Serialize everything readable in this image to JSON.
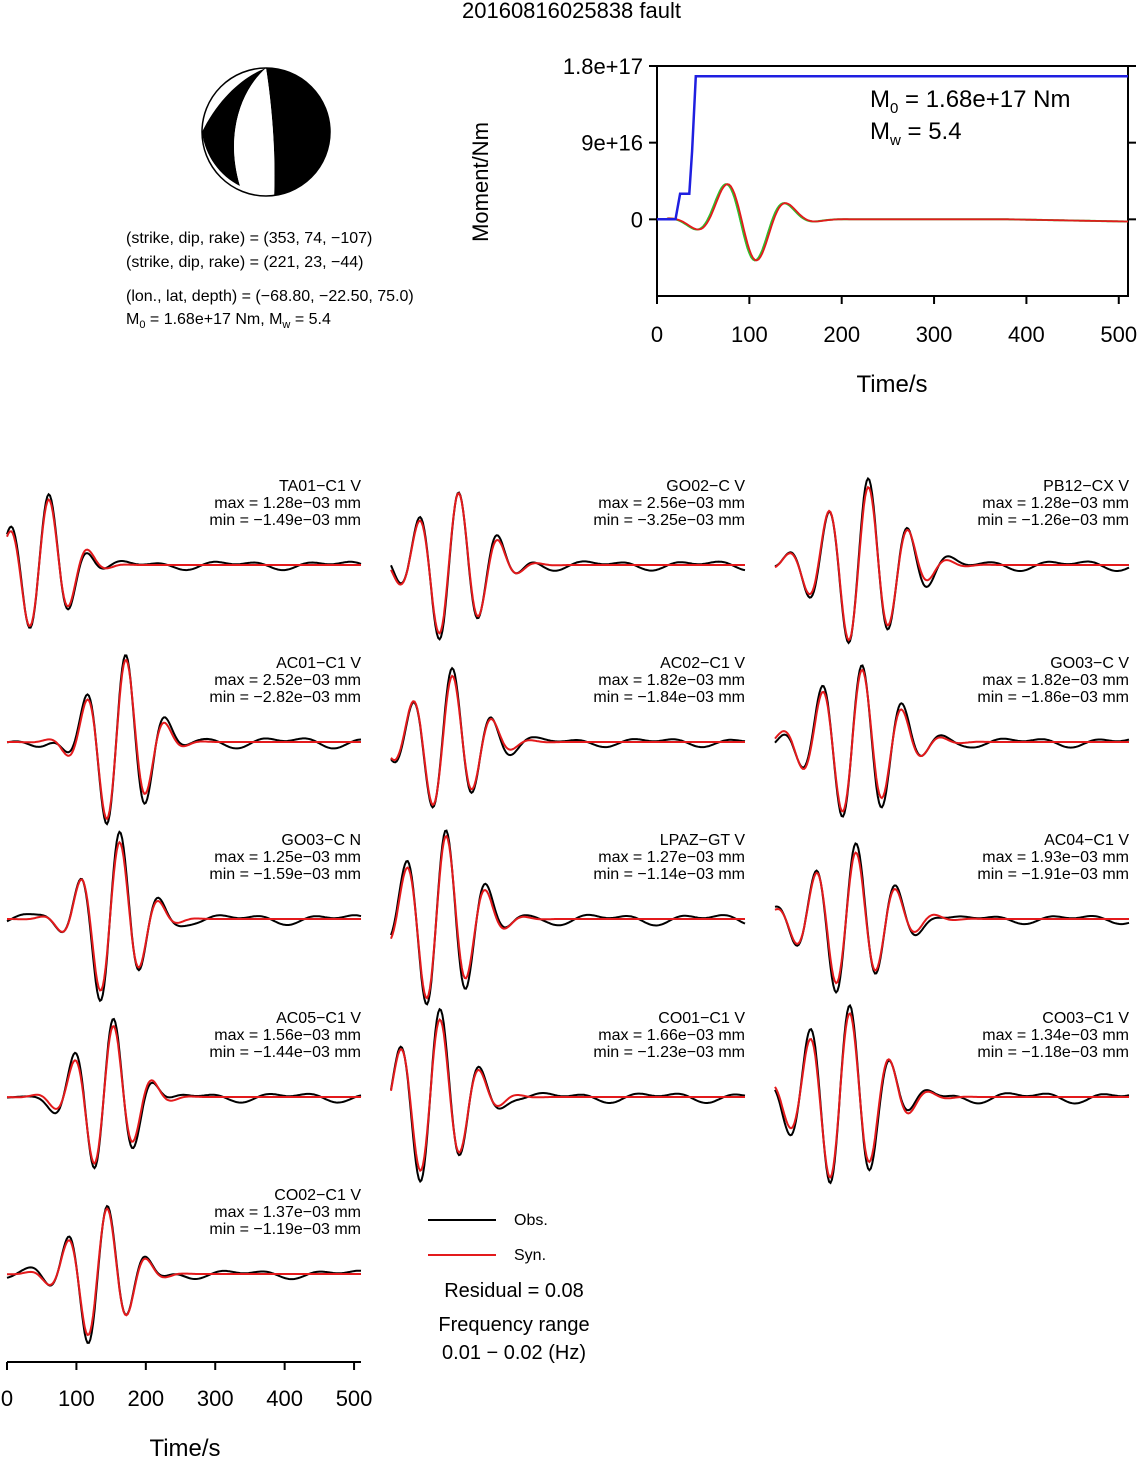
{
  "title": "20160816025838 fault",
  "info": {
    "plane1": "(strike, dip, rake) = (353, 74, −107)",
    "plane2": "(strike, dip, rake) = (221, 23, −44)",
    "location": "(lon., lat, depth) = (−68.80, −22.50, 75.0)",
    "m0_prefix": "M",
    "m0_sub": "0",
    "m0_value": " = 1.68e+17 Nm, M",
    "mw_sub": "w",
    "mw_value": " = 5.4"
  },
  "moment_annot": {
    "m_prefix": "M",
    "m0_sub": "0",
    "m0_value": " = 1.68e+17 Nm",
    "mw_sub": "w",
    "mw_value": " = 5.4"
  },
  "colors": {
    "obs": "#000000",
    "syn": "#e31a1c",
    "stf": "#1f1fe0",
    "stf2": "#2ec02e"
  },
  "chart_data": [
    {
      "type": "line",
      "ylabel": "Moment/Nm",
      "xlabel": "Time/s",
      "xlim": [
        0,
        510
      ],
      "ylim": [
        -9e+16,
        1.8e+17
      ],
      "xticks": [
        "0",
        "100",
        "200",
        "300",
        "400",
        "500"
      ],
      "xtick_values": [
        0,
        100,
        200,
        300,
        400,
        500
      ],
      "yticks": [
        "0",
        "9e+16",
        "1.8e+17"
      ],
      "ytick_values": [
        0,
        9e+16,
        1.8e+17
      ],
      "series": [
        {
          "x": [
            0,
            20,
            25,
            35,
            38,
            42,
            510
          ],
          "y": [
            0,
            0,
            3e+16,
            3e+16,
            8e+16,
            1.68e+17,
            1.68e+17
          ]
        }
      ]
    },
    {
      "type": "line",
      "xlabel": "Time/s",
      "xlim": [
        0,
        510
      ],
      "xticks": [
        "0",
        "100",
        "200",
        "300",
        "400",
        "500"
      ],
      "xtick_values": [
        0,
        100,
        200,
        300,
        400,
        500
      ],
      "legend": [
        "Obs.",
        "Syn."
      ],
      "residual": "Residual = 0.08",
      "freq_title": "Frequency range",
      "freq_range": "0.01 − 0.02 (Hz)",
      "stations": [
        {
          "name": "TA01−C1 V",
          "max": "max = 1.28e−03 mm",
          "min": "min = −1.49e−03 mm"
        },
        {
          "name": "GO02−C V",
          "max": "max = 2.56e−03 mm",
          "min": "min = −3.25e−03 mm"
        },
        {
          "name": "PB12−CX V",
          "max": "max = 1.28e−03 mm",
          "min": "min = −1.26e−03 mm"
        },
        {
          "name": "AC01−C1 V",
          "max": "max = 2.52e−03 mm",
          "min": "min = −2.82e−03 mm"
        },
        {
          "name": "AC02−C1 V",
          "max": "max = 1.82e−03 mm",
          "min": "min = −1.84e−03 mm"
        },
        {
          "name": "GO03−C V",
          "max": "max = 1.82e−03 mm",
          "min": "min = −1.86e−03 mm"
        },
        {
          "name": "GO03−C N",
          "max": "max = 1.25e−03 mm",
          "min": "min = −1.59e−03 mm"
        },
        {
          "name": "LPAZ−GT V",
          "max": "max = 1.27e−03 mm",
          "min": "min = −1.14e−03 mm"
        },
        {
          "name": "AC04−C1 V",
          "max": "max = 1.93e−03 mm",
          "min": "min = −1.91e−03 mm"
        },
        {
          "name": "AC05−C1 V",
          "max": "max = 1.56e−03 mm",
          "min": "min = −1.44e−03 mm"
        },
        {
          "name": "CO01−C1 V",
          "max": "max = 1.66e−03 mm",
          "min": "min = −1.23e−03 mm"
        },
        {
          "name": "CO03−C1 V",
          "max": "max = 1.34e−03 mm",
          "min": "min = −1.18e−03 mm"
        },
        {
          "name": "CO02−C1 V",
          "max": "max = 1.37e−03 mm",
          "min": "min = −1.19e−03 mm"
        }
      ]
    }
  ]
}
